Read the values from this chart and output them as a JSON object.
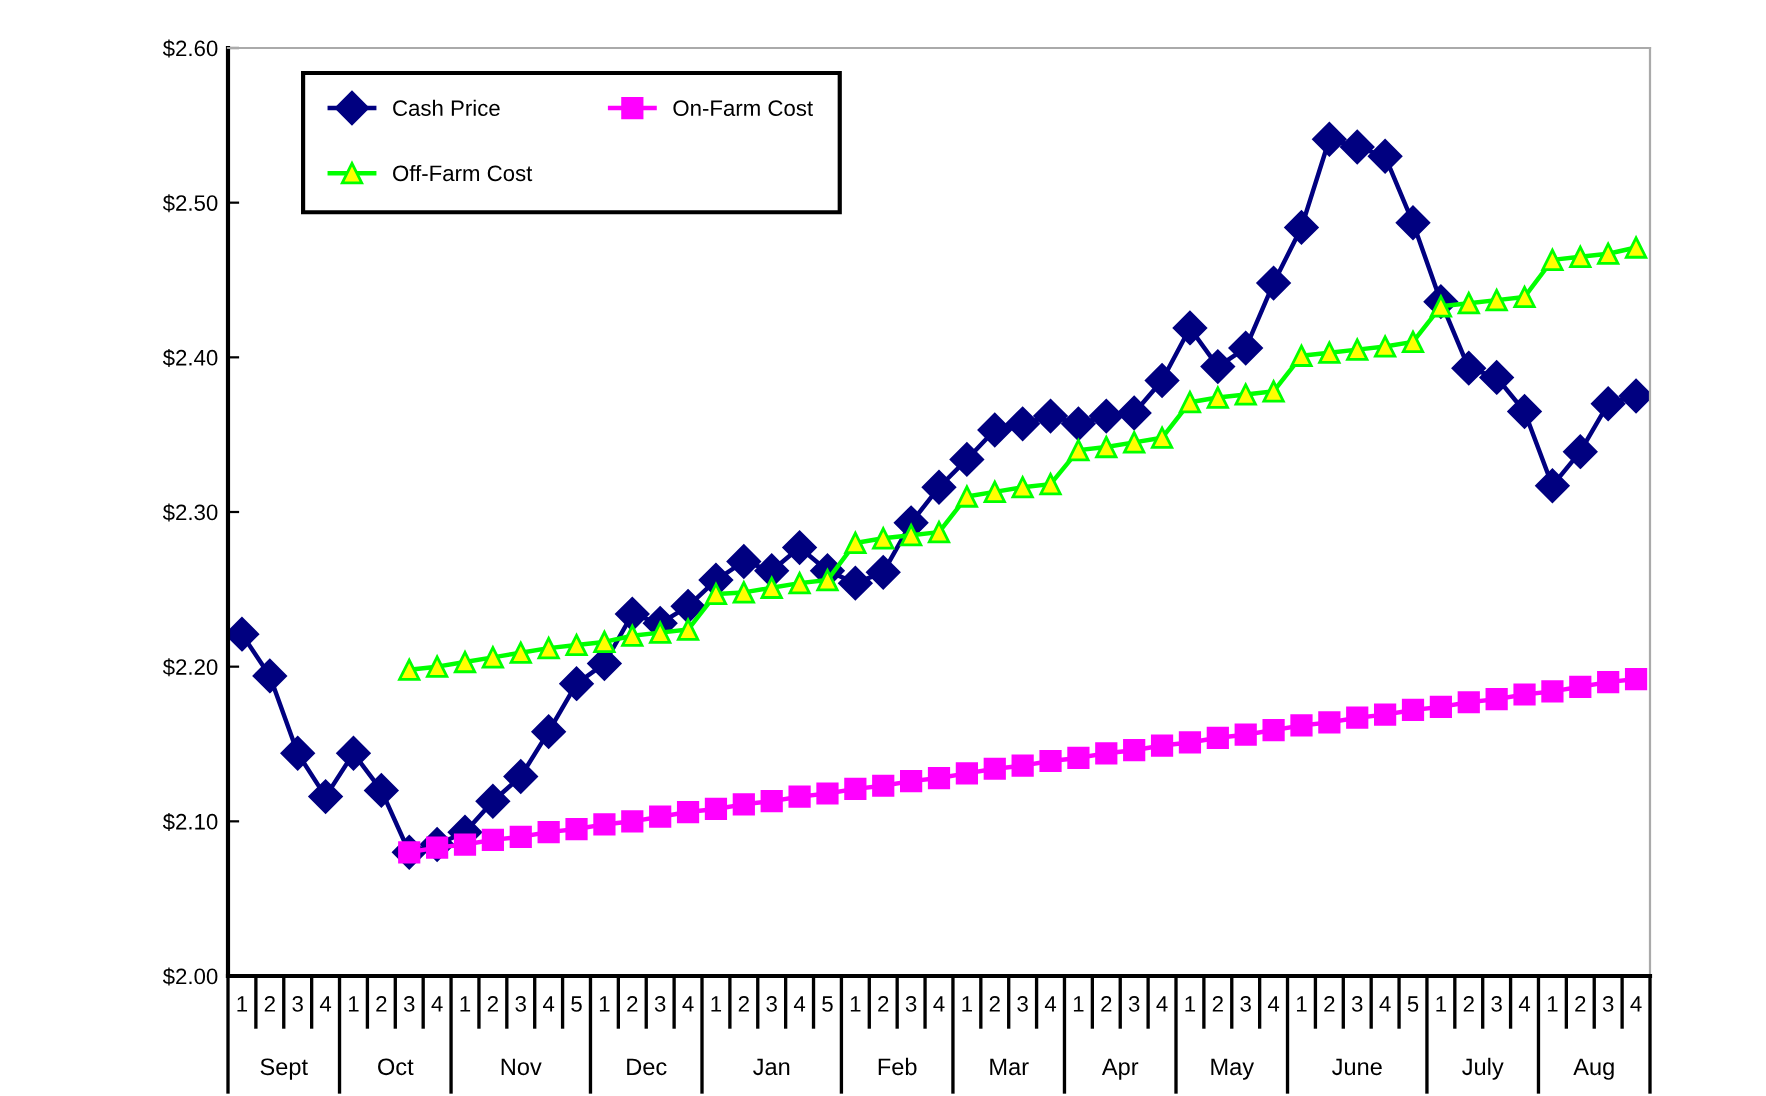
{
  "chart_data": {
    "type": "line",
    "categories": [
      "1",
      "2",
      "3",
      "4",
      "1",
      "2",
      "3",
      "4",
      "1",
      "2",
      "3",
      "4",
      "5",
      "1",
      "2",
      "3",
      "4",
      "1",
      "2",
      "3",
      "4",
      "5",
      "1",
      "2",
      "3",
      "4",
      "1",
      "2",
      "3",
      "4",
      "1",
      "2",
      "3",
      "4",
      "1",
      "2",
      "3",
      "4",
      "1",
      "2",
      "3",
      "4",
      "5",
      "1",
      "2",
      "3",
      "4",
      "1",
      "2",
      "3",
      "4"
    ],
    "annotations": [
      "Sept",
      "Oct",
      "Nov",
      "Dec",
      "Jan",
      "Feb",
      "Mar",
      "Apr",
      "May",
      "June",
      "July",
      "Aug"
    ],
    "series": [
      {
        "name": "Cash Price",
        "color": "#000080",
        "marker": "diamond",
        "values": [
          2.221,
          2.194,
          2.144,
          2.116,
          2.144,
          2.12,
          2.08,
          2.085,
          2.093,
          2.113,
          2.129,
          2.158,
          2.189,
          2.202,
          2.234,
          2.228,
          2.239,
          2.256,
          2.268,
          2.262,
          2.277,
          2.262,
          2.254,
          2.261,
          2.293,
          2.316,
          2.334,
          2.353,
          2.357,
          2.362,
          2.357,
          2.362,
          2.364,
          2.385,
          2.419,
          2.394,
          2.406,
          2.448,
          2.484,
          2.541,
          2.536,
          2.53,
          2.487,
          2.436,
          2.393,
          2.387,
          2.365,
          2.317,
          2.339,
          2.37,
          2.375
        ]
      },
      {
        "name": "On-Farm Cost",
        "color": "#ff00ff",
        "marker": "square",
        "values": [
          null,
          null,
          null,
          null,
          null,
          null,
          2.08,
          2.083,
          2.085,
          2.088,
          2.09,
          2.093,
          2.095,
          2.098,
          2.1,
          2.103,
          2.106,
          2.108,
          2.111,
          2.113,
          2.116,
          2.118,
          2.121,
          2.123,
          2.126,
          2.128,
          2.131,
          2.134,
          2.136,
          2.139,
          2.141,
          2.144,
          2.146,
          2.149,
          2.151,
          2.154,
          2.156,
          2.159,
          2.162,
          2.164,
          2.167,
          2.169,
          2.172,
          2.174,
          2.177,
          2.179,
          2.182,
          2.184,
          2.187,
          2.19,
          2.192
        ]
      },
      {
        "name": "Off-Farm Cost",
        "color": "#00ff00",
        "marker": "triangle",
        "values": [
          null,
          null,
          null,
          null,
          null,
          null,
          2.198,
          2.2,
          2.203,
          2.206,
          2.209,
          2.212,
          2.214,
          2.216,
          2.22,
          2.222,
          2.224,
          2.247,
          2.248,
          2.251,
          2.254,
          2.256,
          2.28,
          2.283,
          2.285,
          2.287,
          2.31,
          2.313,
          2.316,
          2.318,
          2.34,
          2.342,
          2.345,
          2.348,
          2.371,
          2.374,
          2.376,
          2.378,
          2.401,
          2.403,
          2.405,
          2.407,
          2.41,
          2.433,
          2.435,
          2.437,
          2.439,
          2.463,
          2.465,
          2.467,
          2.471
        ]
      }
    ],
    "ylim": [
      2.0,
      2.6
    ],
    "yticks": [
      {
        "value": 2.0,
        "label": "$2.00"
      },
      {
        "value": 2.1,
        "label": "$2.10"
      },
      {
        "value": 2.2,
        "label": "$2.20"
      },
      {
        "value": 2.3,
        "label": "$2.30"
      },
      {
        "value": 2.4,
        "label": "$2.40"
      },
      {
        "value": 2.5,
        "label": "$2.50"
      },
      {
        "value": 2.6,
        "label": "$2.60"
      }
    ],
    "grid": false,
    "legend": "top left",
    "line_style": "solid"
  }
}
